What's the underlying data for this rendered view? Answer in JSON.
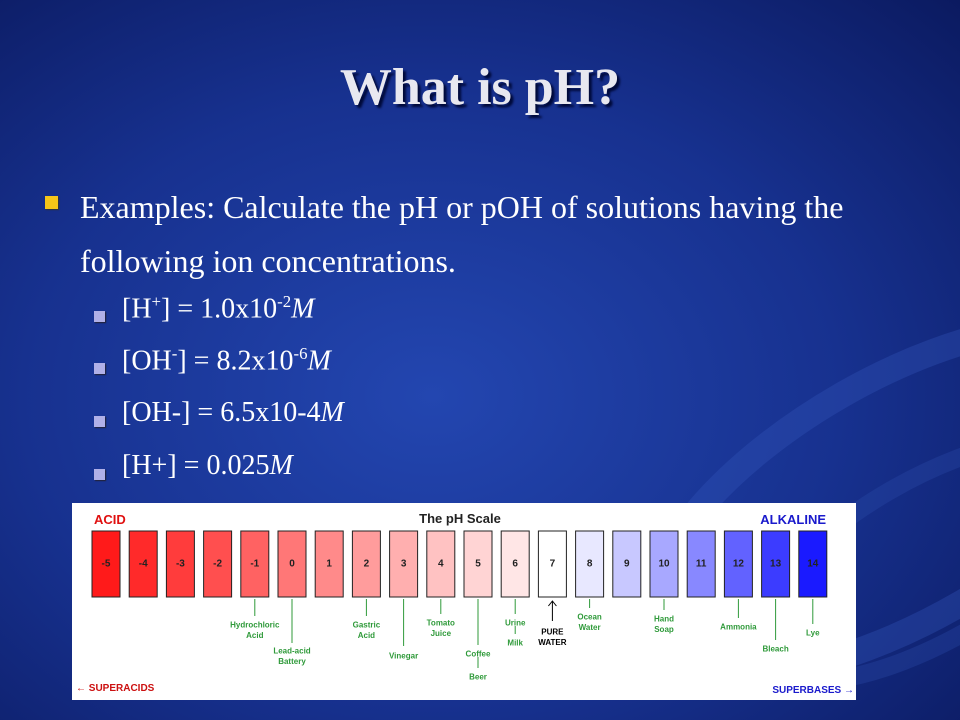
{
  "title": "What is pH?",
  "bullet": "Examples: Calculate the pH or pOH of solutions having the following ion concentrations.",
  "sub_bullets": [
    [
      {
        "t": "[H"
      },
      {
        "t": "+",
        "sup": true
      },
      {
        "t": "] = 1.0x10"
      },
      {
        "t": "-2",
        "sup": true
      },
      {
        "t": "M",
        "italic": true
      }
    ],
    [
      {
        "t": "[OH"
      },
      {
        "t": "-",
        "sup": true
      },
      {
        "t": "] = 8.2x10"
      },
      {
        "t": "-6",
        "sup": true
      },
      {
        "t": "M",
        "italic": true
      }
    ],
    [
      {
        "t": "[OH-] = 6.5x10-4"
      },
      {
        "t": "M",
        "italic": true
      }
    ],
    [
      {
        "t": "[H+] = 0.025"
      },
      {
        "t": "M",
        "italic": true
      }
    ]
  ],
  "scale": {
    "title": "The pH Scale",
    "acid": "ACID",
    "alkaline": "ALKALINE",
    "superacids": "← SUPERACIDS",
    "superbases": "SUPERBASES →",
    "cells": [
      {
        "label": "-5",
        "color": "#ff1a1a"
      },
      {
        "label": "-4",
        "color": "#ff2a2a"
      },
      {
        "label": "-3",
        "color": "#ff3c3c"
      },
      {
        "label": "-2",
        "color": "#ff4f4f"
      },
      {
        "label": "-1",
        "color": "#ff6262"
      },
      {
        "label": "0",
        "color": "#ff7777"
      },
      {
        "label": "1",
        "color": "#ff8a8a"
      },
      {
        "label": "2",
        "color": "#ff9c9c"
      },
      {
        "label": "3",
        "color": "#ffafaf"
      },
      {
        "label": "4",
        "color": "#ffc2c2"
      },
      {
        "label": "5",
        "color": "#ffd4d4"
      },
      {
        "label": "6",
        "color": "#ffe6e6"
      },
      {
        "label": "7",
        "color": "#ffffff"
      },
      {
        "label": "8",
        "color": "#e8e8ff"
      },
      {
        "label": "9",
        "color": "#c8c8ff"
      },
      {
        "label": "10",
        "color": "#a8a8ff"
      },
      {
        "label": "11",
        "color": "#8888ff"
      },
      {
        "label": "12",
        "color": "#6262ff"
      },
      {
        "label": "13",
        "color": "#3c3cff"
      },
      {
        "label": "14",
        "color": "#1a1aff"
      }
    ],
    "annotations": [
      {
        "lines": [
          "Hydrochloric",
          "Acid"
        ]
      },
      {
        "lines": [
          "Lead-acid",
          "Battery"
        ]
      },
      {
        "lines": [
          "Gastric",
          "Acid"
        ]
      },
      {
        "lines": [
          "Vinegar"
        ]
      },
      {
        "lines": [
          "Tomato",
          "Juice"
        ]
      },
      {
        "lines": [
          "Coffee"
        ]
      },
      {
        "lines": [
          "Beer"
        ]
      },
      {
        "lines": [
          "Urine"
        ]
      },
      {
        "lines": [
          "Milk"
        ]
      },
      {
        "lines": [
          "PURE",
          "WATER"
        ]
      },
      {
        "lines": [
          "Ocean",
          "Water"
        ]
      },
      {
        "lines": [
          "Hand",
          "Soap"
        ]
      },
      {
        "lines": [
          "Ammonia"
        ]
      },
      {
        "lines": [
          "Bleach"
        ]
      },
      {
        "lines": [
          "Lye"
        ]
      }
    ]
  }
}
